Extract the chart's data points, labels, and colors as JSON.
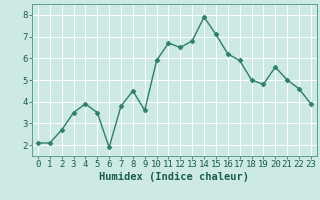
{
  "x": [
    0,
    1,
    2,
    3,
    4,
    5,
    6,
    7,
    8,
    9,
    10,
    11,
    12,
    13,
    14,
    15,
    16,
    17,
    18,
    19,
    20,
    21,
    22,
    23
  ],
  "y": [
    2.1,
    2.1,
    2.7,
    3.5,
    3.9,
    3.5,
    1.9,
    3.8,
    4.5,
    3.6,
    5.9,
    6.7,
    6.5,
    6.8,
    7.9,
    7.1,
    6.2,
    5.9,
    5.0,
    4.8,
    5.6,
    5.0,
    4.6,
    3.9
  ],
  "line_color": "#2e7d6e",
  "marker": "D",
  "marker_size": 2.5,
  "bg_color": "#cce9e4",
  "grid_color": "#ffffff",
  "grid_minor_color": "#e8f5f3",
  "xlabel": "Humidex (Indice chaleur)",
  "xlabel_fontsize": 7.5,
  "tick_fontsize": 6.5,
  "ylim": [
    1.5,
    8.5
  ],
  "xlim": [
    -0.5,
    23.5
  ],
  "yticks": [
    2,
    3,
    4,
    5,
    6,
    7,
    8
  ],
  "xticks": [
    0,
    1,
    2,
    3,
    4,
    5,
    6,
    7,
    8,
    9,
    10,
    11,
    12,
    13,
    14,
    15,
    16,
    17,
    18,
    19,
    20,
    21,
    22,
    23
  ],
  "linewidth": 1.0,
  "spine_color": "#5a9e94"
}
